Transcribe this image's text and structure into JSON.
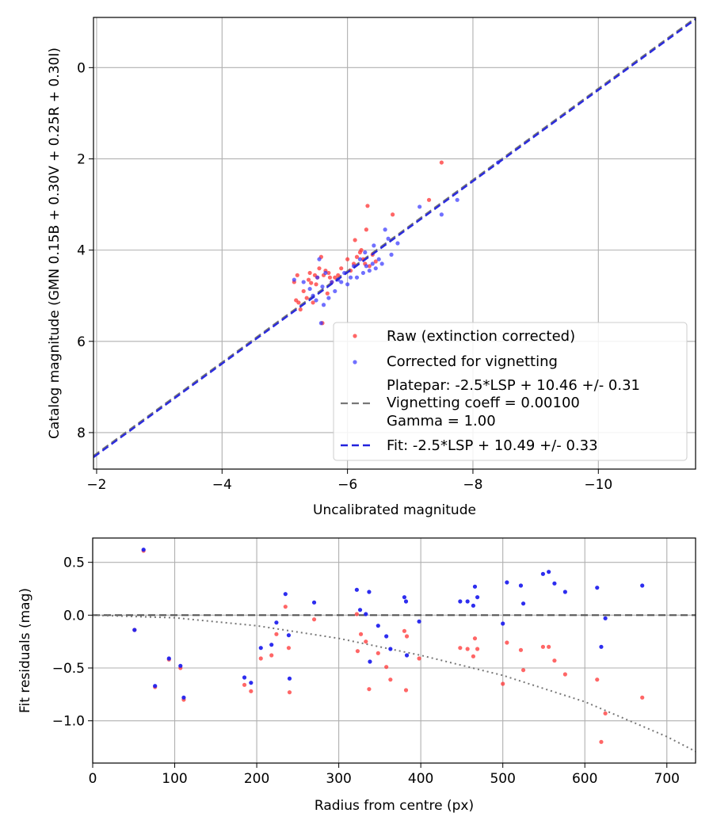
{
  "chart_data": [
    {
      "type": "scatter",
      "xlabel": "Uncalibrated magnitude",
      "ylabel": "Catalog magnitude (GMN 0.15B + 0.30V + 0.25R + 0.30I)",
      "xlim": [
        -1.95,
        -11.55
      ],
      "ylim": [
        8.8,
        -1.1
      ],
      "x_ticks": [
        -2,
        -4,
        -6,
        -8,
        -10
      ],
      "x_tick_labels": [
        "−2",
        "−4",
        "−6",
        "−8",
        "−10"
      ],
      "y_ticks": [
        0,
        2,
        4,
        6,
        8
      ],
      "y_tick_labels": [
        "0",
        "2",
        "4",
        "6",
        "8"
      ],
      "grid": true,
      "legend_position": "bottom-right",
      "legend": {
        "raw": "Raw (extinction corrected)",
        "corrected": "Corrected for vignetting",
        "platepar_lines": [
          "Platepar: -2.5*LSP + 10.46 +/- 0.31",
          "Vignetting coeff = 0.00100",
          "Gamma = 1.00"
        ],
        "fit": "Fit: -2.5*LSP + 10.49 +/- 0.33"
      },
      "colors": {
        "raw": "#ff3333",
        "corrected": "#3333ff",
        "platepar": "#777777",
        "fit": "#2222dd"
      },
      "lines": [
        {
          "name": "Platepar",
          "intercept": 10.46,
          "slope": 1,
          "style": "dashed"
        },
        {
          "name": "Fit",
          "intercept": 10.49,
          "slope": 1,
          "style": "dashed"
        }
      ],
      "series": [
        {
          "name": "Raw (extinction corrected)",
          "points": [
            [
              -5.15,
              4.7
            ],
            [
              -5.2,
              4.55
            ],
            [
              -5.18,
              5.1
            ],
            [
              -5.22,
              5.15
            ],
            [
              -5.3,
              4.9
            ],
            [
              -5.25,
              5.3
            ],
            [
              -5.35,
              5.05
            ],
            [
              -5.38,
              4.65
            ],
            [
              -5.4,
              4.5
            ],
            [
              -5.42,
              4.72
            ],
            [
              -5.45,
              5.15
            ],
            [
              -5.48,
              4.55
            ],
            [
              -5.5,
              4.75
            ],
            [
              -5.52,
              4.6
            ],
            [
              -5.55,
              4.4
            ],
            [
              -5.58,
              4.15
            ],
            [
              -5.6,
              5.6
            ],
            [
              -5.62,
              4.55
            ],
            [
              -5.65,
              4.45
            ],
            [
              -5.68,
              4.95
            ],
            [
              -5.7,
              4.5
            ],
            [
              -5.72,
              4.6
            ],
            [
              -5.75,
              4.7
            ],
            [
              -5.8,
              4.6
            ],
            [
              -5.85,
              4.55
            ],
            [
              -5.9,
              4.4
            ],
            [
              -6.0,
              4.2
            ],
            [
              -6.05,
              4.45
            ],
            [
              -6.1,
              4.3
            ],
            [
              -6.12,
              3.78
            ],
            [
              -6.15,
              4.15
            ],
            [
              -6.2,
              4.05
            ],
            [
              -6.22,
              4.0
            ],
            [
              -6.25,
              4.2
            ],
            [
              -6.28,
              4.3
            ],
            [
              -6.3,
              3.55
            ],
            [
              -6.32,
              3.03
            ],
            [
              -6.35,
              4.35
            ],
            [
              -6.4,
              4.1
            ],
            [
              -6.45,
              4.25
            ],
            [
              -6.72,
              3.22
            ],
            [
              -7.3,
              2.9
            ],
            [
              -7.5,
              2.08
            ]
          ]
        },
        {
          "name": "Corrected for vignetting",
          "points": [
            [
              -5.15,
              4.65
            ],
            [
              -5.3,
              4.7
            ],
            [
              -5.4,
              4.85
            ],
            [
              -5.45,
              5.0
            ],
            [
              -5.5,
              5.1
            ],
            [
              -5.52,
              4.6
            ],
            [
              -5.55,
              4.2
            ],
            [
              -5.58,
              5.6
            ],
            [
              -5.6,
              4.8
            ],
            [
              -5.62,
              5.2
            ],
            [
              -5.65,
              4.5
            ],
            [
              -5.7,
              5.05
            ],
            [
              -5.75,
              4.7
            ],
            [
              -5.8,
              4.9
            ],
            [
              -5.85,
              4.65
            ],
            [
              -5.9,
              4.7
            ],
            [
              -5.95,
              4.5
            ],
            [
              -6.0,
              4.75
            ],
            [
              -6.05,
              4.6
            ],
            [
              -6.1,
              4.35
            ],
            [
              -6.15,
              4.6
            ],
            [
              -6.2,
              4.2
            ],
            [
              -6.25,
              4.5
            ],
            [
              -6.28,
              4.05
            ],
            [
              -6.3,
              4.35
            ],
            [
              -6.35,
              4.45
            ],
            [
              -6.4,
              4.3
            ],
            [
              -6.42,
              3.9
            ],
            [
              -6.45,
              4.4
            ],
            [
              -6.5,
              4.2
            ],
            [
              -6.55,
              4.3
            ],
            [
              -6.6,
              3.55
            ],
            [
              -6.65,
              3.75
            ],
            [
              -6.7,
              4.1
            ],
            [
              -6.8,
              3.85
            ],
            [
              -7.15,
              3.05
            ],
            [
              -7.5,
              3.22
            ],
            [
              -7.75,
              2.9
            ],
            [
              -8.4,
              2.08
            ]
          ]
        }
      ]
    },
    {
      "type": "scatter",
      "xlabel": "Radius from centre (px)",
      "ylabel": "Fit residuals (mag)",
      "xlim": [
        0,
        735
      ],
      "ylim": [
        -1.4,
        0.73
      ],
      "x_ticks": [
        0,
        100,
        200,
        300,
        400,
        500,
        600,
        700
      ],
      "x_tick_labels": [
        "0",
        "100",
        "200",
        "300",
        "400",
        "500",
        "600",
        "700"
      ],
      "y_ticks": [
        0.5,
        0.0,
        -0.5,
        -1.0
      ],
      "y_tick_labels": [
        "0.5",
        "0.0",
        "−0.5",
        "−1.0"
      ],
      "grid": true,
      "reference_line": {
        "y": 0.0,
        "style": "dashed",
        "color": "#555555"
      },
      "vignetting_curve": {
        "style": "dotted",
        "color": "#777777",
        "points": [
          [
            0,
            0
          ],
          [
            100,
            -0.025
          ],
          [
            200,
            -0.1
          ],
          [
            300,
            -0.22
          ],
          [
            400,
            -0.38
          ],
          [
            500,
            -0.57
          ],
          [
            600,
            -0.82
          ],
          [
            700,
            -1.15
          ],
          [
            735,
            -1.29
          ]
        ]
      },
      "series": [
        {
          "name": "Raw",
          "color": "#ff3333",
          "points": [
            [
              51,
              -0.14
            ],
            [
              62,
              0.61
            ],
            [
              76,
              -0.68
            ],
            [
              93,
              -0.42
            ],
            [
              107,
              -0.5
            ],
            [
              111,
              -0.8
            ],
            [
              185,
              -0.66
            ],
            [
              193,
              -0.72
            ],
            [
              205,
              -0.41
            ],
            [
              218,
              -0.38
            ],
            [
              224,
              -0.18
            ],
            [
              235,
              0.08
            ],
            [
              239,
              -0.31
            ],
            [
              240,
              -0.73
            ],
            [
              270,
              -0.04
            ],
            [
              322,
              0.01
            ],
            [
              323,
              -0.34
            ],
            [
              327,
              -0.18
            ],
            [
              333,
              -0.25
            ],
            [
              337,
              -0.7
            ],
            [
              348,
              -0.36
            ],
            [
              358,
              -0.49
            ],
            [
              363,
              -0.61
            ],
            [
              380,
              -0.15
            ],
            [
              382,
              -0.71
            ],
            [
              383,
              -0.2
            ],
            [
              398,
              -0.41
            ],
            [
              448,
              -0.31
            ],
            [
              457,
              -0.32
            ],
            [
              464,
              -0.39
            ],
            [
              466,
              -0.22
            ],
            [
              469,
              -0.32
            ],
            [
              500,
              -0.65
            ],
            [
              505,
              -0.26
            ],
            [
              522,
              -0.33
            ],
            [
              525,
              -0.52
            ],
            [
              549,
              -0.3
            ],
            [
              556,
              -0.3
            ],
            [
              563,
              -0.43
            ],
            [
              576,
              -0.56
            ],
            [
              615,
              -0.61
            ],
            [
              620,
              -1.2
            ],
            [
              625,
              -0.93
            ],
            [
              670,
              -0.78
            ]
          ]
        },
        {
          "name": "Corrected",
          "color": "#2222ee",
          "points": [
            [
              51,
              -0.14
            ],
            [
              62,
              0.62
            ],
            [
              76,
              -0.67
            ],
            [
              93,
              -0.41
            ],
            [
              107,
              -0.48
            ],
            [
              111,
              -0.78
            ],
            [
              185,
              -0.59
            ],
            [
              193,
              -0.64
            ],
            [
              205,
              -0.31
            ],
            [
              218,
              -0.28
            ],
            [
              224,
              -0.07
            ],
            [
              235,
              0.2
            ],
            [
              239,
              -0.19
            ],
            [
              240,
              -0.6
            ],
            [
              270,
              0.12
            ],
            [
              322,
              0.24
            ],
            [
              326,
              0.05
            ],
            [
              333,
              0.01
            ],
            [
              337,
              0.22
            ],
            [
              338,
              -0.44
            ],
            [
              348,
              -0.1
            ],
            [
              358,
              -0.2
            ],
            [
              363,
              -0.32
            ],
            [
              380,
              0.17
            ],
            [
              382,
              0.13
            ],
            [
              383,
              -0.38
            ],
            [
              398,
              -0.06
            ],
            [
              448,
              0.13
            ],
            [
              457,
              0.13
            ],
            [
              464,
              0.09
            ],
            [
              466,
              0.27
            ],
            [
              469,
              0.17
            ],
            [
              500,
              -0.08
            ],
            [
              505,
              0.31
            ],
            [
              522,
              0.28
            ],
            [
              525,
              0.11
            ],
            [
              549,
              0.39
            ],
            [
              556,
              0.41
            ],
            [
              563,
              0.3
            ],
            [
              576,
              0.22
            ],
            [
              615,
              0.26
            ],
            [
              620,
              -0.3
            ],
            [
              625,
              -0.03
            ],
            [
              670,
              0.28
            ]
          ]
        }
      ]
    }
  ]
}
